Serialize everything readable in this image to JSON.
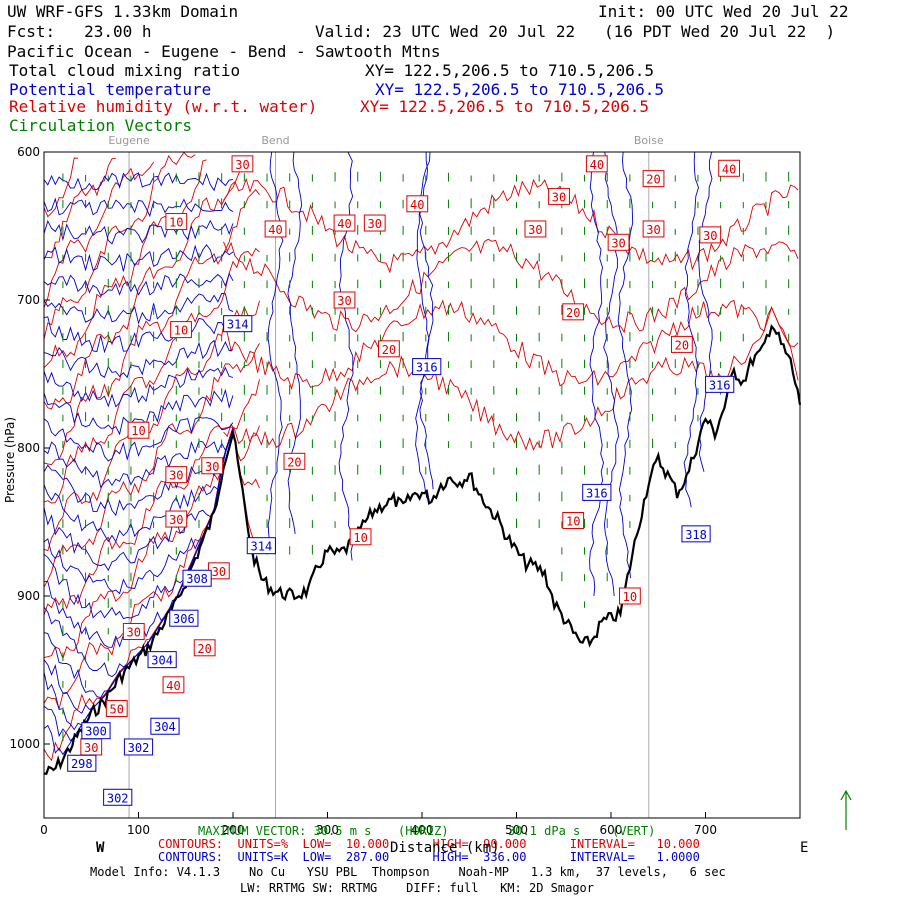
{
  "header": {
    "line1_left": "UW WRF-GFS 1.33km Domain",
    "line1_right": "Init: 00 UTC Wed 20 Jul 22",
    "line2_left": "Fcst:   23.00 h",
    "line2_right": "Valid: 23 UTC Wed 20 Jul 22   (16 PDT Wed 20 Jul 22  )",
    "line3": "Pacific Ocean - Eugene - Bend - Sawtooth Mtns",
    "field1": "Total cloud mixing ratio",
    "field1_xy": "XY= 122.5,206.5 to 710.5,206.5",
    "field2": "Potential temperature",
    "field2_xy": "XY= 122.5,206.5 to 710.5,206.5",
    "field3": "Relative humidity (w.r.t. water)",
    "field3_xy": "XY= 122.5,206.5 to 710.5,206.5",
    "field4": "Circulation Vectors"
  },
  "colors": {
    "rh": "#dd0000",
    "theta": "#0000cc",
    "vectors": "#008000",
    "terrain": "#000000",
    "city_lines": "#aaaaaa"
  },
  "chart_data": {
    "type": "cross-section",
    "x_ticks": [
      "0",
      "100",
      "200",
      "300",
      "400",
      "500",
      "600",
      "700"
    ],
    "y_ticks": [
      "600",
      "700",
      "800",
      "900",
      "1000"
    ],
    "xlim": [
      0,
      800
    ],
    "ylim": [
      1050,
      600
    ],
    "direction_left": "W",
    "direction_right": "E",
    "xlabel": "Distance (km)",
    "ylabel": "Pressure (hPa)",
    "cities": [
      {
        "name": "Eugene",
        "x": 90
      },
      {
        "name": "Bend",
        "x": 245
      },
      {
        "name": "Boise",
        "x": 640
      }
    ],
    "terrain": [
      [
        0,
        1020
      ],
      [
        10,
        1018
      ],
      [
        20,
        1010
      ],
      [
        35,
        995
      ],
      [
        50,
        980
      ],
      [
        65,
        970
      ],
      [
        80,
        955
      ],
      [
        95,
        945
      ],
      [
        110,
        935
      ],
      [
        120,
        925
      ],
      [
        130,
        915
      ],
      [
        140,
        905
      ],
      [
        150,
        890
      ],
      [
        160,
        875
      ],
      [
        170,
        860
      ],
      [
        180,
        845
      ],
      [
        190,
        810
      ],
      [
        200,
        790
      ],
      [
        210,
        830
      ],
      [
        220,
        870
      ],
      [
        230,
        888
      ],
      [
        240,
        895
      ],
      [
        250,
        898
      ],
      [
        265,
        900
      ],
      [
        280,
        896
      ],
      [
        290,
        880
      ],
      [
        300,
        870
      ],
      [
        310,
        872
      ],
      [
        320,
        868
      ],
      [
        330,
        860
      ],
      [
        340,
        850
      ],
      [
        350,
        842
      ],
      [
        360,
        838
      ],
      [
        370,
        835
      ],
      [
        380,
        840
      ],
      [
        390,
        832
      ],
      [
        400,
        830
      ],
      [
        410,
        835
      ],
      [
        420,
        825
      ],
      [
        430,
        820
      ],
      [
        440,
        823
      ],
      [
        450,
        818
      ],
      [
        460,
        830
      ],
      [
        470,
        840
      ],
      [
        480,
        848
      ],
      [
        490,
        860
      ],
      [
        500,
        870
      ],
      [
        510,
        878
      ],
      [
        520,
        880
      ],
      [
        530,
        885
      ],
      [
        540,
        905
      ],
      [
        550,
        915
      ],
      [
        560,
        925
      ],
      [
        570,
        933
      ],
      [
        580,
        930
      ],
      [
        590,
        918
      ],
      [
        600,
        915
      ],
      [
        610,
        912
      ],
      [
        620,
        880
      ],
      [
        630,
        850
      ],
      [
        640,
        822
      ],
      [
        650,
        808
      ],
      [
        660,
        818
      ],
      [
        670,
        830
      ],
      [
        680,
        820
      ],
      [
        690,
        800
      ],
      [
        700,
        780
      ],
      [
        710,
        790
      ],
      [
        720,
        772
      ],
      [
        730,
        748
      ],
      [
        740,
        755
      ],
      [
        750,
        740
      ],
      [
        760,
        735
      ],
      [
        770,
        715
      ],
      [
        780,
        730
      ],
      [
        790,
        742
      ],
      [
        800,
        770
      ]
    ],
    "rh_labels": [
      {
        "text": "30",
        "x": 210,
        "y": 608
      },
      {
        "text": "40",
        "x": 585,
        "y": 608
      },
      {
        "text": "40",
        "x": 725,
        "y": 611
      },
      {
        "text": "20",
        "x": 645,
        "y": 618
      },
      {
        "text": "30",
        "x": 545,
        "y": 630
      },
      {
        "text": "40",
        "x": 395,
        "y": 635
      },
      {
        "text": "10",
        "x": 140,
        "y": 647
      },
      {
        "text": "40",
        "x": 245,
        "y": 652
      },
      {
        "text": "40",
        "x": 318,
        "y": 648
      },
      {
        "text": "30",
        "x": 350,
        "y": 648
      },
      {
        "text": "30",
        "x": 520,
        "y": 652
      },
      {
        "text": "30",
        "x": 645,
        "y": 652
      },
      {
        "text": "30",
        "x": 705,
        "y": 656
      },
      {
        "text": "30",
        "x": 608,
        "y": 661
      },
      {
        "text": "30",
        "x": 318,
        "y": 700
      },
      {
        "text": "20",
        "x": 560,
        "y": 708
      },
      {
        "text": "10",
        "x": 145,
        "y": 720
      },
      {
        "text": "20",
        "x": 365,
        "y": 733
      },
      {
        "text": "20",
        "x": 675,
        "y": 730
      },
      {
        "text": "10",
        "x": 100,
        "y": 788
      },
      {
        "text": "20",
        "x": 265,
        "y": 809
      },
      {
        "text": "30",
        "x": 140,
        "y": 818
      },
      {
        "text": "30",
        "x": 178,
        "y": 812
      },
      {
        "text": "30",
        "x": 140,
        "y": 848
      },
      {
        "text": "10",
        "x": 335,
        "y": 860
      },
      {
        "text": "10",
        "x": 560,
        "y": 849
      },
      {
        "text": "30",
        "x": 185,
        "y": 883
      },
      {
        "text": "10",
        "x": 620,
        "y": 900
      },
      {
        "text": "30",
        "x": 95,
        "y": 924
      },
      {
        "text": "20",
        "x": 170,
        "y": 935
      },
      {
        "text": "40",
        "x": 137,
        "y": 960
      },
      {
        "text": "50",
        "x": 77,
        "y": 976
      },
      {
        "text": "30",
        "x": 50,
        "y": 1002
      }
    ],
    "theta_labels": [
      {
        "text": "314",
        "x": 205,
        "y": 716
      },
      {
        "text": "316",
        "x": 405,
        "y": 745
      },
      {
        "text": "316",
        "x": 715,
        "y": 757
      },
      {
        "text": "316",
        "x": 585,
        "y": 830
      },
      {
        "text": "318",
        "x": 690,
        "y": 858
      },
      {
        "text": "314",
        "x": 230,
        "y": 866
      },
      {
        "text": "308",
        "x": 162,
        "y": 888
      },
      {
        "text": "306",
        "x": 148,
        "y": 915
      },
      {
        "text": "304",
        "x": 125,
        "y": 943
      },
      {
        "text": "304",
        "x": 128,
        "y": 988
      },
      {
        "text": "300",
        "x": 55,
        "y": 991
      },
      {
        "text": "302",
        "x": 100,
        "y": 1002
      },
      {
        "text": "298",
        "x": 40,
        "y": 1013
      },
      {
        "text": "302",
        "x": 78,
        "y": 1036
      }
    ],
    "max_vector_label": "MAXIMUM VECTOR: 30.5 m s",
    "max_vector_horiz": "(HORIZ)",
    "max_vector_vert": "30.1 dPa s",
    "max_vector_vert_tag": "(VERT)"
  },
  "footer": {
    "red_line": "CONTOURS:  UNITS=%  LOW=  10.000      HIGH=  90.000      INTERVAL=   10.000",
    "blue_line": "CONTOURS:  UNITS=K  LOW=  287.00      HIGH=  336.00      INTERVAL=   1.0000",
    "model_info": "Model Info: V4.1.3    No Cu   YSU PBL  Thompson    Noah-MP   1.3 km,  37 levels,   6 sec",
    "model_info2": "LW: RRTMG SW: RRTMG    DIFF: full   KM: 2D Smagor"
  }
}
